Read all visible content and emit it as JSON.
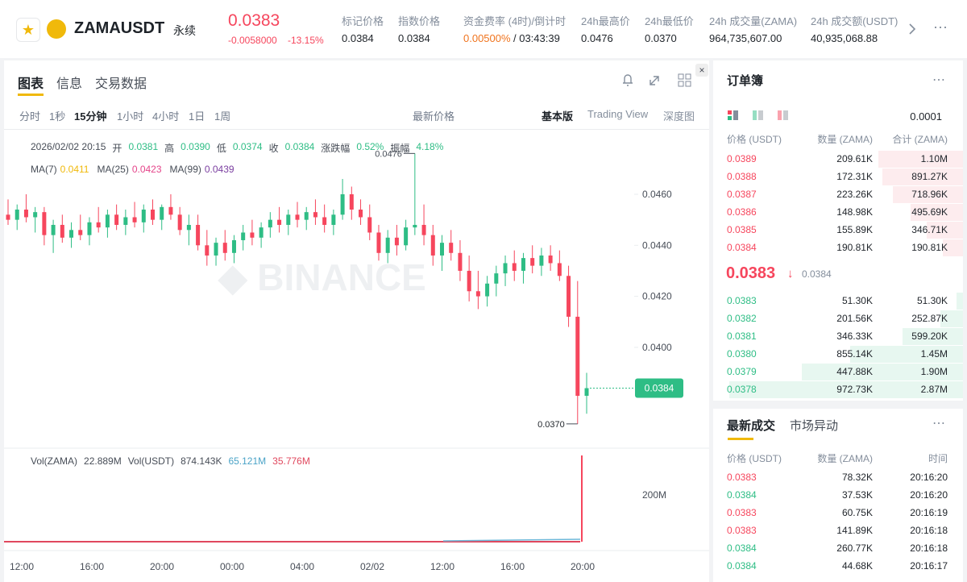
{
  "header": {
    "symbol": "ZAMAUSDT",
    "contract": "永续",
    "price": "0.0383",
    "change": "-0.0058000",
    "change_pct": "-13.15%",
    "stats": [
      {
        "label": "标记价格",
        "value": "0.0384"
      },
      {
        "label": "指数价格",
        "value": "0.0384"
      },
      {
        "label": "资金费率 (4时)/倒计时",
        "value": "0.00500%",
        "extra": "/ 03:43:39"
      },
      {
        "label": "24h最高价",
        "value": "0.0476"
      },
      {
        "label": "24h最低价",
        "value": "0.0370"
      },
      {
        "label": "24h 成交量(ZAMA)",
        "value": "964,735,607.00"
      },
      {
        "label": "24h 成交额(USDT)",
        "value": "40,935,068.88"
      }
    ]
  },
  "tabs": [
    "图表",
    "信息",
    "交易数据"
  ],
  "intervals": [
    "分时",
    "1秒",
    "15分钟",
    "1小时",
    "4小时",
    "1日",
    "1周"
  ],
  "price_source": "最新价格",
  "views": [
    "基本版",
    "Trading View",
    "深度图"
  ],
  "info": [
    "2026/02/02 20:15",
    "开",
    "0.0381",
    "高",
    "0.0390",
    "低",
    "0.0374",
    "收",
    "0.0384",
    "涨跌幅",
    "0.52%",
    "振幅",
    "4.18%"
  ],
  "ma": [
    {
      "name": "MA(7)",
      "value": "0.0411",
      "color": "#f0b90b"
    },
    {
      "name": "MA(25)",
      "value": "0.0423",
      "color": "#e5458a"
    },
    {
      "name": "MA(99)",
      "value": "0.0439",
      "color": "#7b3fa0"
    }
  ],
  "chart": {
    "price_ticks": [
      {
        "value": 0.046,
        "label": "0.0460"
      },
      {
        "value": 0.044,
        "label": "0.0440"
      },
      {
        "value": 0.042,
        "label": "0.0420"
      },
      {
        "value": 0.04,
        "label": "0.0400"
      }
    ],
    "high_label": {
      "value": 0.0476,
      "label": "0.0476"
    },
    "low_label": {
      "value": 0.037,
      "label": "0.0370"
    },
    "last_label": {
      "value": 0.0384,
      "label": "0.0384"
    },
    "time_ticks": [
      "12:00",
      "16:00",
      "20:00",
      "00:00",
      "04:00",
      "02/02",
      "12:00",
      "16:00",
      "20:00"
    ],
    "up_color": "#2ebd85",
    "down_color": "#f6465d",
    "candles": [
      [
        0.0452,
        0.0458,
        0.0448,
        0.045
      ],
      [
        0.045,
        0.0456,
        0.0446,
        0.0454
      ],
      [
        0.0454,
        0.046,
        0.0449,
        0.0451
      ],
      [
        0.0451,
        0.0455,
        0.0445,
        0.0453
      ],
      [
        0.0453,
        0.0455,
        0.044,
        0.0444
      ],
      [
        0.0444,
        0.045,
        0.0437,
        0.0448
      ],
      [
        0.0448,
        0.0452,
        0.0441,
        0.0443
      ],
      [
        0.0443,
        0.0449,
        0.0439,
        0.0446
      ],
      [
        0.0446,
        0.0452,
        0.0442,
        0.0444
      ],
      [
        0.0444,
        0.0451,
        0.044,
        0.0449
      ],
      [
        0.0449,
        0.0455,
        0.0445,
        0.0447
      ],
      [
        0.0447,
        0.0454,
        0.0443,
        0.0452
      ],
      [
        0.0452,
        0.0456,
        0.0446,
        0.0448
      ],
      [
        0.0448,
        0.0454,
        0.0444,
        0.0451
      ],
      [
        0.0451,
        0.0457,
        0.0447,
        0.0449
      ],
      [
        0.0449,
        0.0456,
        0.0445,
        0.0454
      ],
      [
        0.0454,
        0.0458,
        0.0448,
        0.045
      ],
      [
        0.045,
        0.0456,
        0.0446,
        0.0455
      ],
      [
        0.0455,
        0.046,
        0.045,
        0.0452
      ],
      [
        0.0452,
        0.0455,
        0.0444,
        0.0446
      ],
      [
        0.0446,
        0.0452,
        0.044,
        0.0448
      ],
      [
        0.0448,
        0.0452,
        0.0438,
        0.044
      ],
      [
        0.044,
        0.0446,
        0.0432,
        0.0436
      ],
      [
        0.0436,
        0.0443,
        0.0432,
        0.0441
      ],
      [
        0.0441,
        0.0446,
        0.0434,
        0.0437
      ],
      [
        0.0437,
        0.0444,
        0.0433,
        0.0442
      ],
      [
        0.0442,
        0.0448,
        0.0438,
        0.0445
      ],
      [
        0.0445,
        0.045,
        0.044,
        0.0443
      ],
      [
        0.0443,
        0.0449,
        0.0439,
        0.0447
      ],
      [
        0.0447,
        0.0453,
        0.0443,
        0.045
      ],
      [
        0.045,
        0.0455,
        0.0445,
        0.0448
      ],
      [
        0.0448,
        0.0454,
        0.0444,
        0.0452
      ],
      [
        0.0452,
        0.0457,
        0.0447,
        0.045
      ],
      [
        0.045,
        0.0455,
        0.0446,
        0.0453
      ],
      [
        0.0453,
        0.0458,
        0.0448,
        0.0451
      ],
      [
        0.0451,
        0.0456,
        0.0445,
        0.0448
      ],
      [
        0.0448,
        0.0454,
        0.0444,
        0.0452
      ],
      [
        0.0452,
        0.0466,
        0.045,
        0.046
      ],
      [
        0.046,
        0.0463,
        0.045,
        0.0454
      ],
      [
        0.0454,
        0.0458,
        0.0448,
        0.0451
      ],
      [
        0.0451,
        0.0456,
        0.0442,
        0.0445
      ],
      [
        0.0445,
        0.0448,
        0.0434,
        0.0437
      ],
      [
        0.0437,
        0.0446,
        0.0433,
        0.0443
      ],
      [
        0.0443,
        0.0448,
        0.0436,
        0.044
      ],
      [
        0.044,
        0.045,
        0.0438,
        0.0447
      ],
      [
        0.0447,
        0.0476,
        0.0444,
        0.0448
      ],
      [
        0.0448,
        0.0456,
        0.044,
        0.0444
      ],
      [
        0.0444,
        0.0448,
        0.0432,
        0.0436
      ],
      [
        0.0436,
        0.0444,
        0.043,
        0.0441
      ],
      [
        0.0441,
        0.0446,
        0.0434,
        0.0437
      ],
      [
        0.0437,
        0.0442,
        0.0426,
        0.043
      ],
      [
        0.043,
        0.0436,
        0.0418,
        0.0422
      ],
      [
        0.0422,
        0.043,
        0.0415,
        0.042
      ],
      [
        0.042,
        0.0428,
        0.0416,
        0.0425
      ],
      [
        0.0425,
        0.0432,
        0.042,
        0.0429
      ],
      [
        0.0429,
        0.0436,
        0.0424,
        0.0433
      ],
      [
        0.0433,
        0.0438,
        0.0426,
        0.043
      ],
      [
        0.043,
        0.0437,
        0.0425,
        0.0435
      ],
      [
        0.0435,
        0.044,
        0.0429,
        0.0432
      ],
      [
        0.0432,
        0.0439,
        0.0428,
        0.0436
      ],
      [
        0.0436,
        0.044,
        0.043,
        0.0433
      ],
      [
        0.0433,
        0.0438,
        0.0426,
        0.0428
      ],
      [
        0.0428,
        0.0432,
        0.0408,
        0.0412
      ],
      [
        0.0412,
        0.0426,
        0.037,
        0.0381
      ],
      [
        0.0381,
        0.039,
        0.0374,
        0.0384
      ]
    ]
  },
  "volume": {
    "items": [
      "Vol(ZAMA)",
      "22.889M",
      "Vol(USDT)",
      "874.143K",
      "65.121M",
      "35.776M"
    ],
    "tick": "200M"
  },
  "orderbook": {
    "title": "订单簿",
    "step": "0.0001",
    "columns": [
      "价格 (USDT)",
      "数量 (ZAMA)",
      "合计 (ZAMA)"
    ],
    "asks": [
      [
        "0.0389",
        "209.61K",
        "1.10M"
      ],
      [
        "0.0388",
        "172.31K",
        "891.27K"
      ],
      [
        "0.0387",
        "223.26K",
        "718.96K"
      ],
      [
        "0.0386",
        "148.98K",
        "495.69K"
      ],
      [
        "0.0385",
        "155.89K",
        "346.71K"
      ],
      [
        "0.0384",
        "190.81K",
        "190.81K"
      ]
    ],
    "last": "0.0383",
    "mark": "0.0384",
    "bids": [
      [
        "0.0383",
        "51.30K",
        "51.30K"
      ],
      [
        "0.0382",
        "201.56K",
        "252.87K"
      ],
      [
        "0.0381",
        "346.33K",
        "599.20K"
      ],
      [
        "0.0380",
        "855.14K",
        "1.45M"
      ],
      [
        "0.0379",
        "447.88K",
        "1.90M"
      ],
      [
        "0.0378",
        "972.73K",
        "2.87M"
      ]
    ]
  },
  "trades": {
    "tabs": [
      "最新成交",
      "市场异动"
    ],
    "columns": [
      "价格 (USDT)",
      "数量 (ZAMA)",
      "时间"
    ],
    "rows": [
      {
        "price": "0.0383",
        "qty": "78.32K",
        "time": "20:16:20",
        "color": "#f6465d"
      },
      {
        "price": "0.0384",
        "qty": "37.53K",
        "time": "20:16:20",
        "color": "#2ebd85"
      },
      {
        "price": "0.0383",
        "qty": "60.75K",
        "time": "20:16:19",
        "color": "#f6465d"
      },
      {
        "price": "0.0383",
        "qty": "141.89K",
        "time": "20:16:18",
        "color": "#f6465d"
      },
      {
        "price": "0.0384",
        "qty": "260.77K",
        "time": "20:16:18",
        "color": "#2ebd85"
      },
      {
        "price": "0.0384",
        "qty": "44.68K",
        "time": "20:16:17",
        "color": "#2ebd85"
      }
    ]
  }
}
